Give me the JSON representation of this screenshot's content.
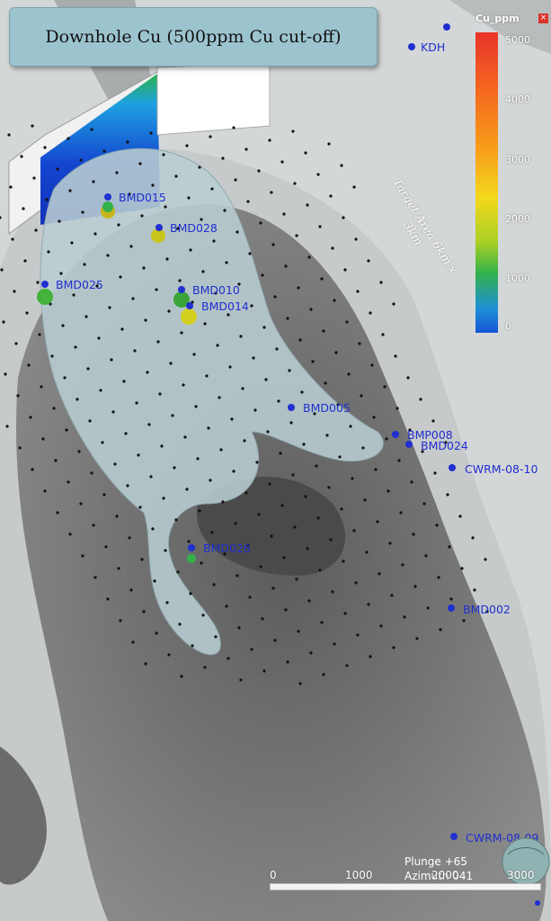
{
  "title": "Downhole Cu (500ppm Cu cut-off)",
  "legend": {
    "title": "Cu_ppm",
    "ticks": [
      "5000",
      "4000",
      "3000",
      "2000",
      "1000",
      "0"
    ],
    "colors": [
      "#e8332a",
      "#f56a1f",
      "#f8a11a",
      "#f4d81c",
      "#33b24a",
      "#1355d6"
    ]
  },
  "target_area": {
    "line1": "Target Area 6km x",
    "line2": "3km"
  },
  "view": {
    "plunge": "Plunge +65",
    "azimuth": "Azimuth 041"
  },
  "scale": {
    "ticks": [
      "0",
      "1000",
      "2000",
      "3000"
    ]
  },
  "holes": [
    {
      "label": "KDH"
    },
    {
      "label": "BMD015"
    },
    {
      "label": "BMD028"
    },
    {
      "label": "BMD025"
    },
    {
      "label": "BMD010"
    },
    {
      "label": "BMD014"
    },
    {
      "label": "BMD005"
    },
    {
      "label": "BMP008"
    },
    {
      "label": "BMD024"
    },
    {
      "label": "CWRM-08-10"
    },
    {
      "label": "BMD026"
    },
    {
      "label": "BMD002"
    },
    {
      "label": "CWRM-08-09"
    }
  ]
}
